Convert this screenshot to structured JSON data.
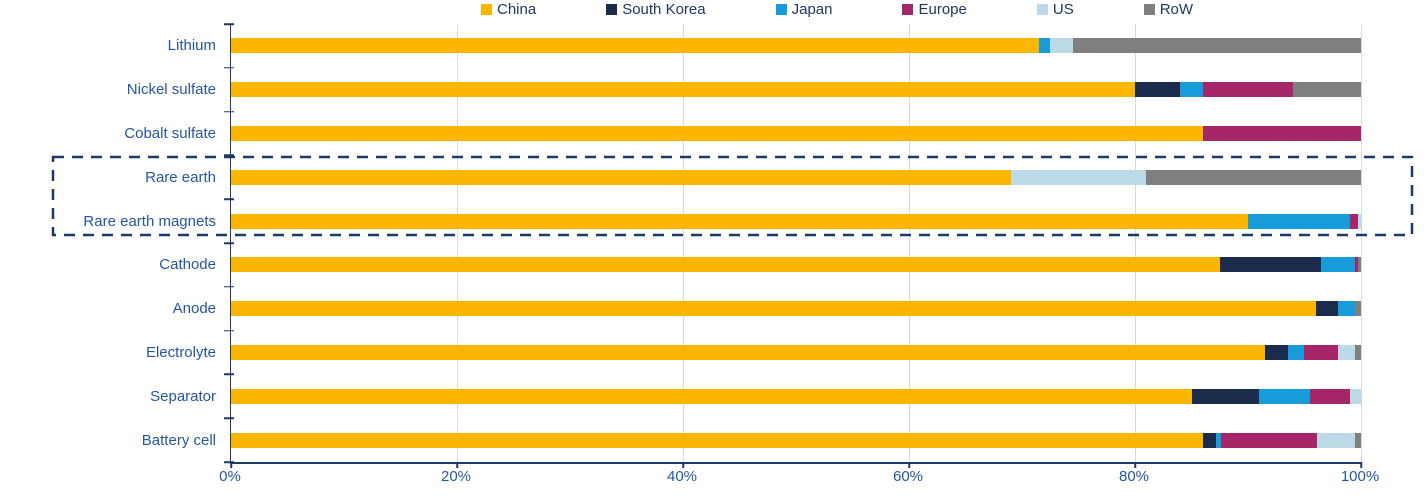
{
  "colors": {
    "axis": "#1F3864",
    "label_text": "#2456A3",
    "legend_text": "#1F3864",
    "gridline": "#D4DAE4",
    "highlight_box": "#1A3A6B"
  },
  "chart_data": {
    "type": "bar",
    "orientation": "horizontal",
    "stacked": true,
    "unit": "%",
    "title": "",
    "legend_position": "top",
    "grid": "vertical-only",
    "categories": [
      "Lithium",
      "Nickel sulfate",
      "Cobalt sulfate",
      "Rare earth",
      "Rare earth magnets",
      "Cathode",
      "Anode",
      "Electrolyte",
      "Separator",
      "Battery cell"
    ],
    "series": [
      {
        "name": "China",
        "color": "#FBB700",
        "values": [
          71.5,
          80,
          86,
          69,
          90,
          87.5,
          96,
          91.5,
          85,
          86
        ]
      },
      {
        "name": "South Korea",
        "color": "#1A2B4C",
        "values": [
          0,
          4,
          0,
          0,
          0,
          9,
          2,
          2,
          6,
          1.2
        ]
      },
      {
        "name": "Japan",
        "color": "#189CD9",
        "values": [
          1,
          2,
          0,
          0,
          9,
          3,
          1.5,
          1.5,
          4.5,
          0.4
        ]
      },
      {
        "name": "Europe",
        "color": "#A62769",
        "values": [
          0,
          8,
          14,
          0,
          0.7,
          0.2,
          0,
          3,
          3.5,
          8.5
        ]
      },
      {
        "name": "US",
        "color": "#BBD9E6",
        "values": [
          2,
          0,
          0,
          12,
          0.3,
          0,
          0,
          1.5,
          1,
          3.4
        ]
      },
      {
        "name": "RoW",
        "color": "#7F7F7F",
        "values": [
          25.5,
          6,
          0,
          19,
          0,
          0.3,
          0.5,
          0.5,
          0,
          0.5
        ]
      }
    ],
    "x_axis": {
      "min": 0,
      "max": 100,
      "ticks": [
        "0%",
        "20%",
        "40%",
        "60%",
        "80%",
        "100%"
      ]
    },
    "highlighted_categories": [
      "Rare earth",
      "Rare earth magnets"
    ]
  }
}
